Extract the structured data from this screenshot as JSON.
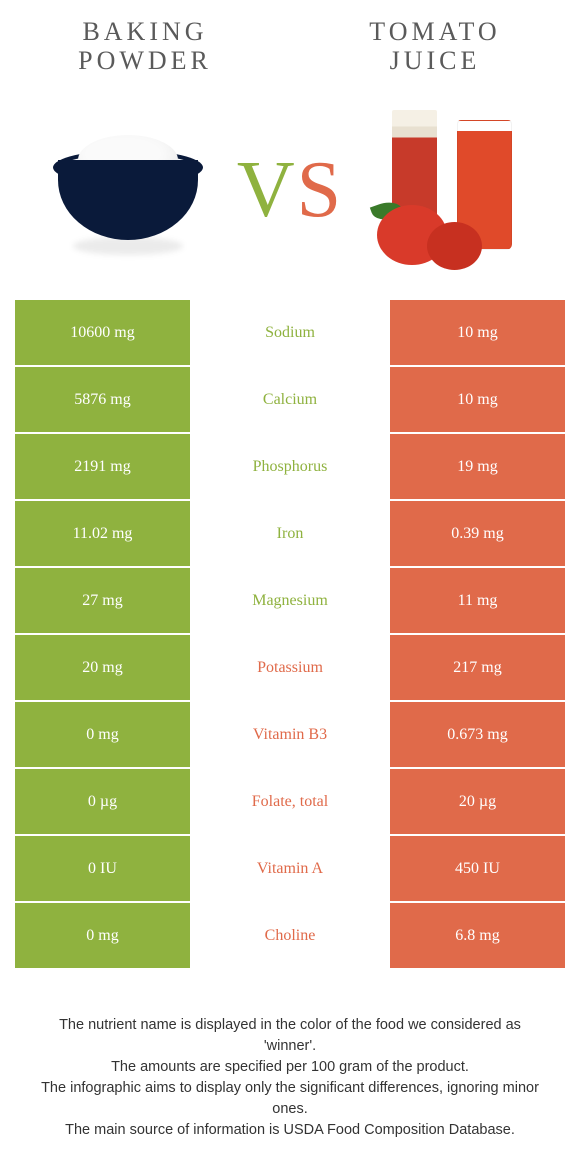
{
  "left_food": {
    "name": "BAKING POWDER",
    "color": "#8fb23f"
  },
  "right_food": {
    "name": "TOMATO JUICE",
    "color": "#e06a4a"
  },
  "vs_label": "VS",
  "colors": {
    "left": "#8fb23f",
    "right": "#e06a4a",
    "white": "#ffffff",
    "row_gap": "#ffffff"
  },
  "rows": [
    {
      "left": "10600 mg",
      "label": "Sodium",
      "right": "10 mg",
      "winner": "left"
    },
    {
      "left": "5876 mg",
      "label": "Calcium",
      "right": "10 mg",
      "winner": "left"
    },
    {
      "left": "2191 mg",
      "label": "Phosphorus",
      "right": "19 mg",
      "winner": "left"
    },
    {
      "left": "11.02 mg",
      "label": "Iron",
      "right": "0.39 mg",
      "winner": "left"
    },
    {
      "left": "27 mg",
      "label": "Magnesium",
      "right": "11 mg",
      "winner": "left"
    },
    {
      "left": "20 mg",
      "label": "Potassium",
      "right": "217 mg",
      "winner": "right"
    },
    {
      "left": "0 mg",
      "label": "Vitamin B3",
      "right": "0.673 mg",
      "winner": "right"
    },
    {
      "left": "0 µg",
      "label": "Folate, total",
      "right": "20 µg",
      "winner": "right"
    },
    {
      "left": "0 IU",
      "label": "Vitamin A",
      "right": "450 IU",
      "winner": "right"
    },
    {
      "left": "0 mg",
      "label": "Choline",
      "right": "6.8 mg",
      "winner": "right"
    }
  ],
  "footer_lines": [
    "The nutrient name is displayed in the color of the food we considered as 'winner'.",
    "The amounts are specified per 100 gram of the product.",
    "The infographic aims to display only the significant differences, ignoring minor ones.",
    "The main source of information is USDA Food Composition Database."
  ]
}
